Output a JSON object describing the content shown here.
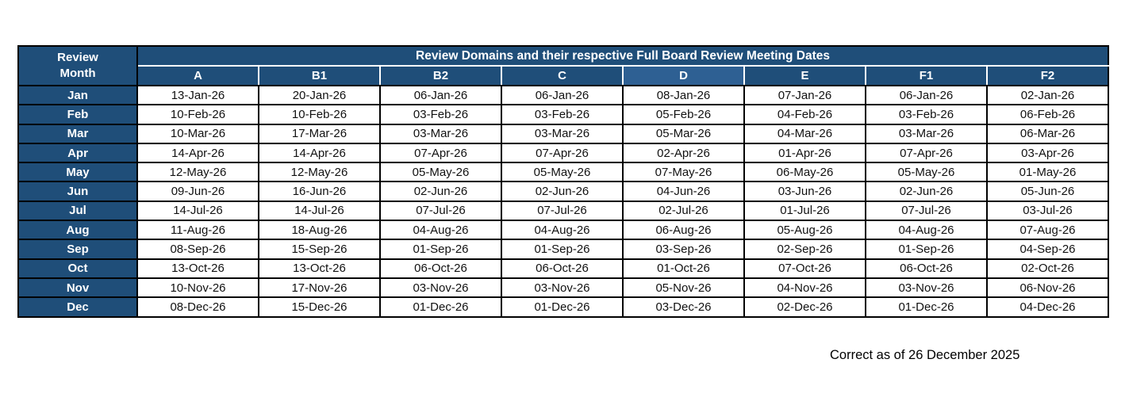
{
  "table": {
    "corner_header": {
      "line1": "Review",
      "line2": "Month"
    },
    "banner": "Review Domains and their respective Full Board Review Meeting Dates",
    "columns": [
      "A",
      "B1",
      "B2",
      "C",
      "D",
      "E",
      "F1",
      "F2"
    ],
    "highlighted_column": "D",
    "rows": [
      {
        "month": "Jan",
        "dates": [
          "13-Jan-26",
          "20-Jan-26",
          "06-Jan-26",
          "06-Jan-26",
          "08-Jan-26",
          "07-Jan-26",
          "06-Jan-26",
          "02-Jan-26"
        ]
      },
      {
        "month": "Feb",
        "dates": [
          "10-Feb-26",
          "10-Feb-26",
          "03-Feb-26",
          "03-Feb-26",
          "05-Feb-26",
          "04-Feb-26",
          "03-Feb-26",
          "06-Feb-26"
        ]
      },
      {
        "month": "Mar",
        "dates": [
          "10-Mar-26",
          "17-Mar-26",
          "03-Mar-26",
          "03-Mar-26",
          "05-Mar-26",
          "04-Mar-26",
          "03-Mar-26",
          "06-Mar-26"
        ]
      },
      {
        "month": "Apr",
        "dates": [
          "14-Apr-26",
          "14-Apr-26",
          "07-Apr-26",
          "07-Apr-26",
          "02-Apr-26",
          "01-Apr-26",
          "07-Apr-26",
          "03-Apr-26"
        ]
      },
      {
        "month": "May",
        "dates": [
          "12-May-26",
          "12-May-26",
          "05-May-26",
          "05-May-26",
          "07-May-26",
          "06-May-26",
          "05-May-26",
          "01-May-26"
        ]
      },
      {
        "month": "Jun",
        "dates": [
          "09-Jun-26",
          "16-Jun-26",
          "02-Jun-26",
          "02-Jun-26",
          "04-Jun-26",
          "03-Jun-26",
          "02-Jun-26",
          "05-Jun-26"
        ]
      },
      {
        "month": "Jul",
        "dates": [
          "14-Jul-26",
          "14-Jul-26",
          "07-Jul-26",
          "07-Jul-26",
          "02-Jul-26",
          "01-Jul-26",
          "07-Jul-26",
          "03-Jul-26"
        ]
      },
      {
        "month": "Aug",
        "dates": [
          "11-Aug-26",
          "18-Aug-26",
          "04-Aug-26",
          "04-Aug-26",
          "06-Aug-26",
          "05-Aug-26",
          "04-Aug-26",
          "07-Aug-26"
        ]
      },
      {
        "month": "Sep",
        "dates": [
          "08-Sep-26",
          "15-Sep-26",
          "01-Sep-26",
          "01-Sep-26",
          "03-Sep-26",
          "02-Sep-26",
          "01-Sep-26",
          "04-Sep-26"
        ]
      },
      {
        "month": "Oct",
        "dates": [
          "13-Oct-26",
          "13-Oct-26",
          "06-Oct-26",
          "06-Oct-26",
          "01-Oct-26",
          "07-Oct-26",
          "06-Oct-26",
          "02-Oct-26"
        ]
      },
      {
        "month": "Nov",
        "dates": [
          "10-Nov-26",
          "17-Nov-26",
          "03-Nov-26",
          "03-Nov-26",
          "05-Nov-26",
          "04-Nov-26",
          "03-Nov-26",
          "06-Nov-26"
        ]
      },
      {
        "month": "Dec",
        "dates": [
          "08-Dec-26",
          "15-Dec-26",
          "01-Dec-26",
          "01-Dec-26",
          "03-Dec-26",
          "02-Dec-26",
          "01-Dec-26",
          "04-Dec-26"
        ]
      }
    ]
  },
  "footer": {
    "note": "Correct as of 26 December 2025"
  },
  "colors": {
    "header_blue": "#1F4E79",
    "highlighted_header_blue": "#2E6093",
    "grid_border": "#000000",
    "header_text": "#FFFFFF",
    "cell_text": "#111111"
  }
}
